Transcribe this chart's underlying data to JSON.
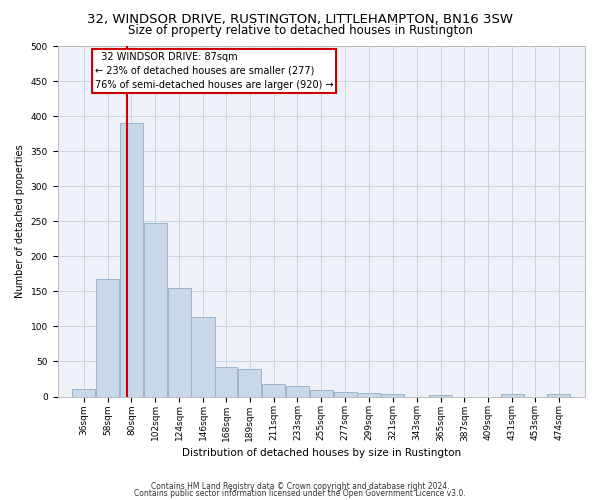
{
  "title": "32, WINDSOR DRIVE, RUSTINGTON, LITTLEHAMPTON, BN16 3SW",
  "subtitle": "Size of property relative to detached houses in Rustington",
  "xlabel": "Distribution of detached houses by size in Rustington",
  "ylabel": "Number of detached properties",
  "bar_color": "#c8d8ea",
  "bar_edgecolor": "#9ab4cc",
  "grid_color": "#c8d4e4",
  "background_color": "#eef2f8",
  "marker_value": 87,
  "marker_label": "32 WINDSOR DRIVE: 87sqm",
  "marker_pct_smaller": "23% of detached houses are smaller (277)",
  "marker_pct_larger": "76% of semi-detached houses are larger (920)",
  "marker_color": "#cc0000",
  "annotation_box_edgecolor": "#cc0000",
  "categories": [
    "36sqm",
    "58sqm",
    "80sqm",
    "102sqm",
    "124sqm",
    "146sqm",
    "168sqm",
    "189sqm",
    "211sqm",
    "233sqm",
    "255sqm",
    "277sqm",
    "299sqm",
    "321sqm",
    "343sqm",
    "365sqm",
    "387sqm",
    "409sqm",
    "431sqm",
    "453sqm",
    "474sqm"
  ],
  "bin_edges": [
    36,
    58,
    80,
    102,
    124,
    146,
    168,
    189,
    211,
    233,
    255,
    277,
    299,
    321,
    343,
    365,
    387,
    409,
    431,
    453,
    474,
    496
  ],
  "values": [
    11,
    167,
    390,
    248,
    155,
    113,
    42,
    39,
    18,
    15,
    9,
    7,
    5,
    3,
    0,
    2,
    0,
    0,
    3,
    0,
    3
  ],
  "ylim": [
    0,
    500
  ],
  "yticks": [
    0,
    50,
    100,
    150,
    200,
    250,
    300,
    350,
    400,
    450,
    500
  ],
  "footer1": "Contains HM Land Registry data © Crown copyright and database right 2024.",
  "footer2": "Contains public sector information licensed under the Open Government Licence v3.0.",
  "title_fontsize": 9.5,
  "subtitle_fontsize": 8.5,
  "ylabel_fontsize": 7,
  "xlabel_fontsize": 7.5,
  "tick_fontsize": 6.5,
  "footer_fontsize": 5.5,
  "ann_fontsize": 7
}
